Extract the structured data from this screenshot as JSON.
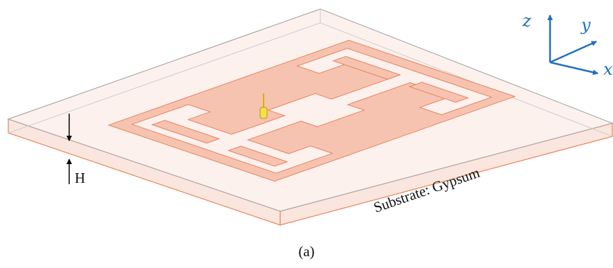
{
  "axes": {
    "z": "z",
    "y": "y",
    "x": "x"
  },
  "dimension_label": "H",
  "substrate_label": "Substrate: Gypsum",
  "caption": "(a)"
}
